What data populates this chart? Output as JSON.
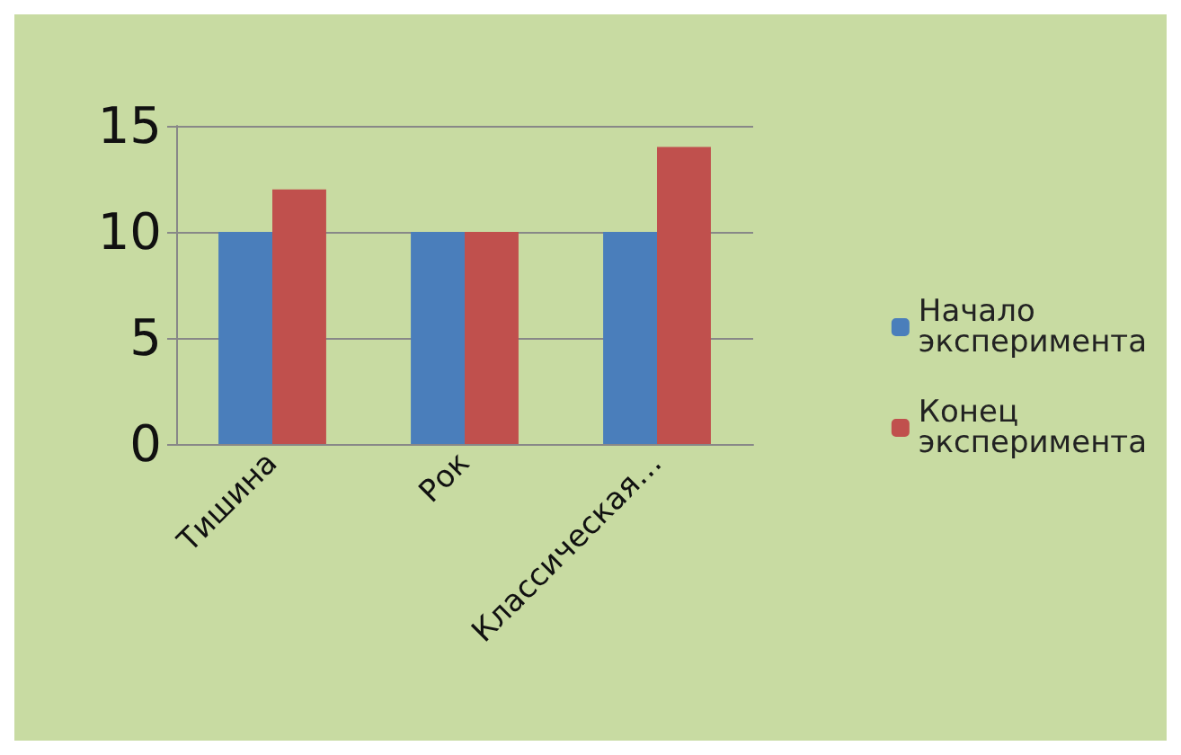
{
  "chart_data": {
    "type": "bar",
    "categories": [
      "Тишина",
      "Рок",
      "Классическая…"
    ],
    "series": [
      {
        "name": "Начало эксперимента",
        "color": "#4a7ebb",
        "values": [
          10,
          10,
          10
        ]
      },
      {
        "name": "Конец эксперимента",
        "color": "#c0504d",
        "values": [
          12,
          10,
          14
        ]
      }
    ],
    "ylim": [
      0,
      15
    ],
    "yticks": [
      0,
      5,
      10,
      15
    ],
    "grid": "y",
    "legend": "right"
  }
}
